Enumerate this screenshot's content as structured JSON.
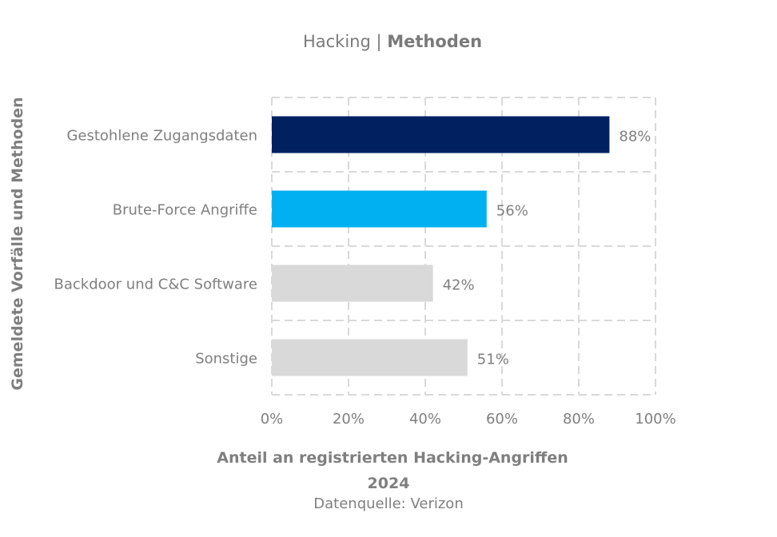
{
  "header": {
    "title_prefix": "Hacking | ",
    "title_bold": "Methoden"
  },
  "footer": {
    "year": "2024",
    "source": "Datenquelle: Verizon"
  },
  "chart_data": {
    "type": "bar",
    "orientation": "horizontal",
    "categories": [
      "Gestohlene Zugangsdaten",
      "Brute-Force Angriffe",
      "Backdoor und C&C Software",
      "Sonstige"
    ],
    "values": [
      88,
      56,
      42,
      51
    ],
    "value_labels": [
      "88%",
      "56%",
      "42%",
      "51%"
    ],
    "colors": [
      "#002060",
      "#00b0f0",
      "#d9d9d9",
      "#d9d9d9"
    ],
    "xlabel": "Anteil an registrierten Hacking-Angriffen",
    "ylabel": "Gemeldete Vorfälle und Methoden",
    "xlim": [
      0,
      100
    ],
    "xticks": [
      0,
      20,
      40,
      60,
      80,
      100
    ],
    "xtick_labels": [
      "0%",
      "20%",
      "40%",
      "60%",
      "80%",
      "100%"
    ],
    "grid": true,
    "grid_style": "dashed",
    "legend": "none"
  }
}
